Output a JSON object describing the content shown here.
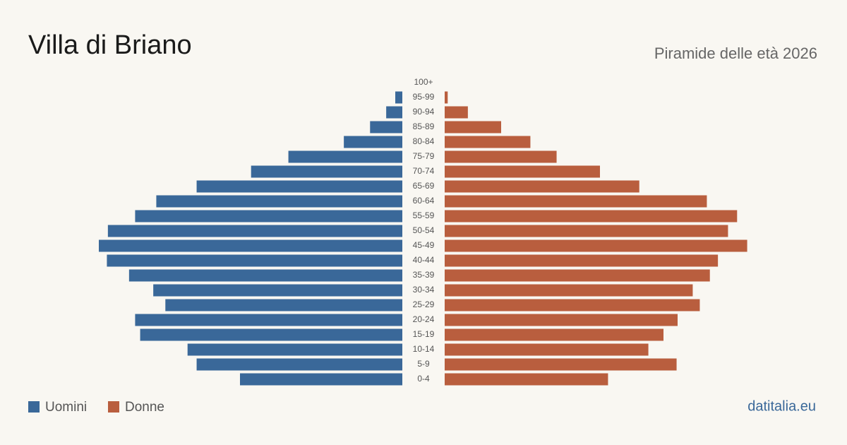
{
  "chart_data": {
    "type": "pyramid",
    "title": "Villa di Briano",
    "subtitle": "Piramide delle età 2026",
    "categories": [
      "100+",
      "95-99",
      "90-94",
      "85-89",
      "80-84",
      "75-79",
      "70-74",
      "65-69",
      "60-64",
      "55-59",
      "50-54",
      "45-49",
      "40-44",
      "35-39",
      "30-34",
      "25-29",
      "20-24",
      "15-19",
      "10-14",
      "5-9",
      "0-4"
    ],
    "series": [
      {
        "name": "Uomini",
        "color": "#3a6899",
        "values": [
          0,
          7,
          16,
          32,
          58,
          113,
          150,
          204,
          244,
          265,
          292,
          301,
          293,
          271,
          247,
          235,
          265,
          260,
          213,
          204,
          161
        ]
      },
      {
        "name": "Donne",
        "color": "#b95e3e",
        "values": [
          0,
          3,
          23,
          56,
          85,
          111,
          154,
          193,
          260,
          290,
          281,
          300,
          271,
          263,
          246,
          253,
          231,
          217,
          202,
          230,
          162
        ]
      }
    ],
    "source": "datitalia.eu"
  }
}
